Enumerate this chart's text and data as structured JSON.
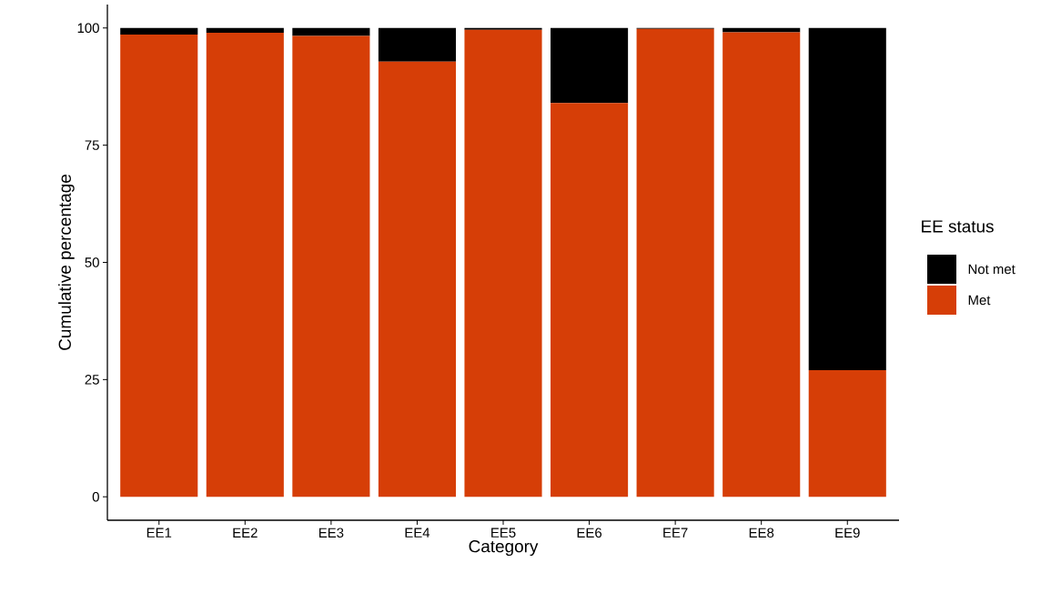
{
  "chart_data": {
    "type": "bar",
    "stacked": true,
    "xlabel": "Category",
    "ylabel": "Cumulative percentage",
    "legend_title": "EE status",
    "legend": "right",
    "grid": false,
    "categories": [
      "EE1",
      "EE2",
      "EE3",
      "EE4",
      "EE5",
      "EE6",
      "EE7",
      "EE8",
      "EE9"
    ],
    "series": [
      {
        "name": "Met",
        "color": "#d63e07",
        "values": [
          98.6,
          99.0,
          98.3,
          92.8,
          99.6,
          84.0,
          99.8,
          99.1,
          27.0
        ]
      },
      {
        "name": "Not met",
        "color": "#000000",
        "values": [
          1.4,
          1.0,
          1.7,
          7.2,
          0.4,
          16.0,
          0.2,
          0.9,
          73.0
        ]
      }
    ],
    "ylim": [
      -5,
      105
    ],
    "yticks": [
      0,
      25,
      50,
      75,
      100
    ]
  }
}
